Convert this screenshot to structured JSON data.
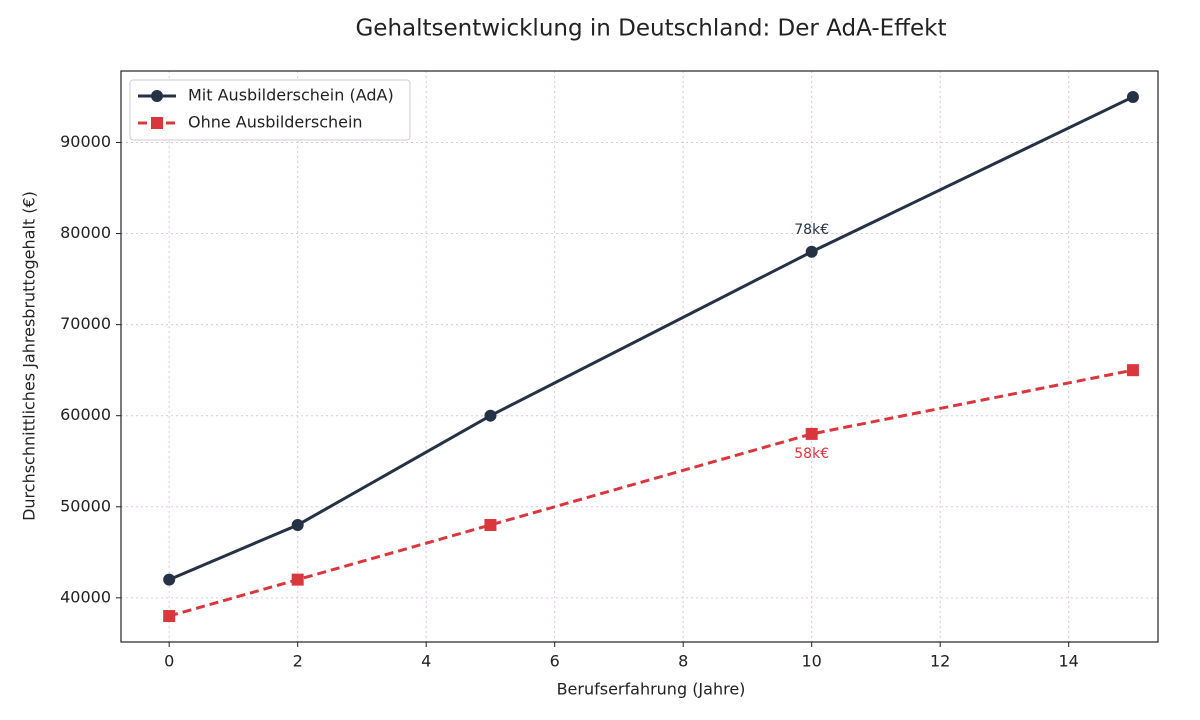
{
  "chart_data": {
    "type": "line",
    "title": "Gehaltsentwicklung in Deutschland: Der AdA-Effekt",
    "xlabel": "Berufserfahrung (Jahre)",
    "ylabel": "Durchschnittliches Jahresbruttogehalt (€)",
    "x": [
      0,
      2,
      5,
      10,
      15
    ],
    "series": [
      {
        "name": "Mit Ausbilderschein (AdA)",
        "color": "#253245",
        "marker": "circle",
        "dash": "solid",
        "values": [
          42000,
          48000,
          60000,
          78000,
          95000
        ]
      },
      {
        "name": "Ohne Ausbilderschein",
        "color": "#d9363e",
        "marker": "square",
        "dash": "dashed",
        "values": [
          38000,
          42000,
          48000,
          58000,
          65000
        ]
      }
    ],
    "annotations": [
      {
        "text": "78k€",
        "x": 10,
        "y": 78000,
        "position": "above",
        "color": "#253245"
      },
      {
        "text": "58k€",
        "x": 10,
        "y": 58000,
        "position": "below",
        "color": "#d9363e"
      }
    ],
    "xlim": [
      -0.75,
      15.39
    ],
    "ylim": [
      35150,
      97850
    ],
    "xticks": [
      0,
      2,
      4,
      6,
      8,
      10,
      12,
      14
    ],
    "yticks": [
      40000,
      50000,
      60000,
      70000,
      80000,
      90000
    ],
    "grid": true,
    "legend": "upper-left"
  }
}
